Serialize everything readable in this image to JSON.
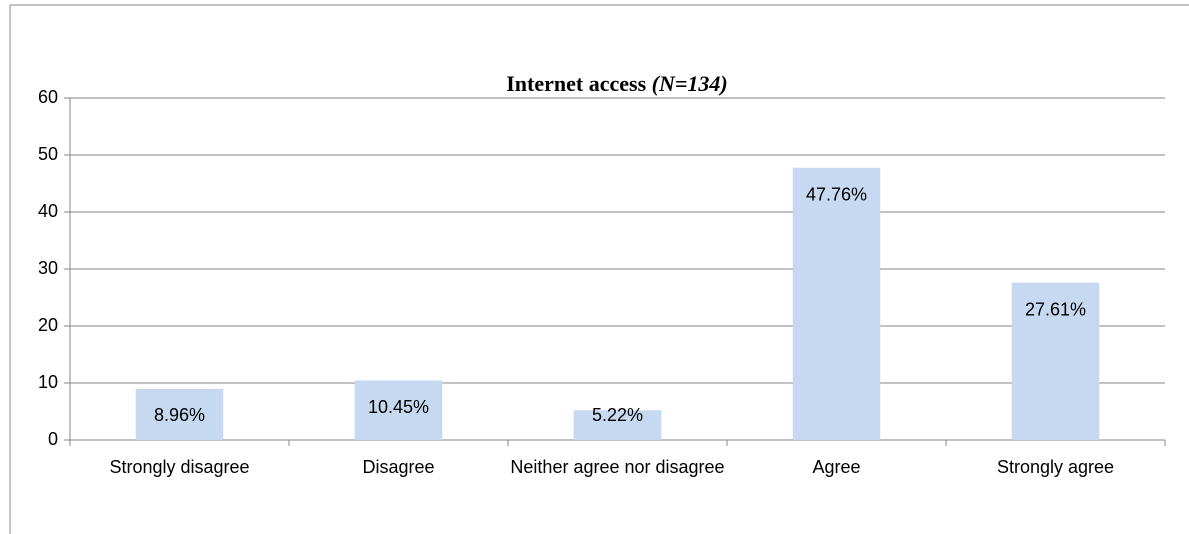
{
  "chart_data": {
    "type": "bar",
    "title": "Internet access",
    "title_note": "(N=134)",
    "categories": [
      "Strongly disagree",
      "Disagree",
      "Neither agree nor disagree",
      "Agree",
      "Strongly agree"
    ],
    "values": [
      8.96,
      10.45,
      5.22,
      47.76,
      27.61
    ],
    "value_labels": [
      "8.96%",
      "10.45%",
      "5.22%",
      "47.76%",
      "27.61%"
    ],
    "color": "#c6d9f1",
    "ylim": [
      0,
      60
    ],
    "yticks": [
      0,
      10,
      20,
      30,
      40,
      50,
      60
    ],
    "grid": true
  }
}
